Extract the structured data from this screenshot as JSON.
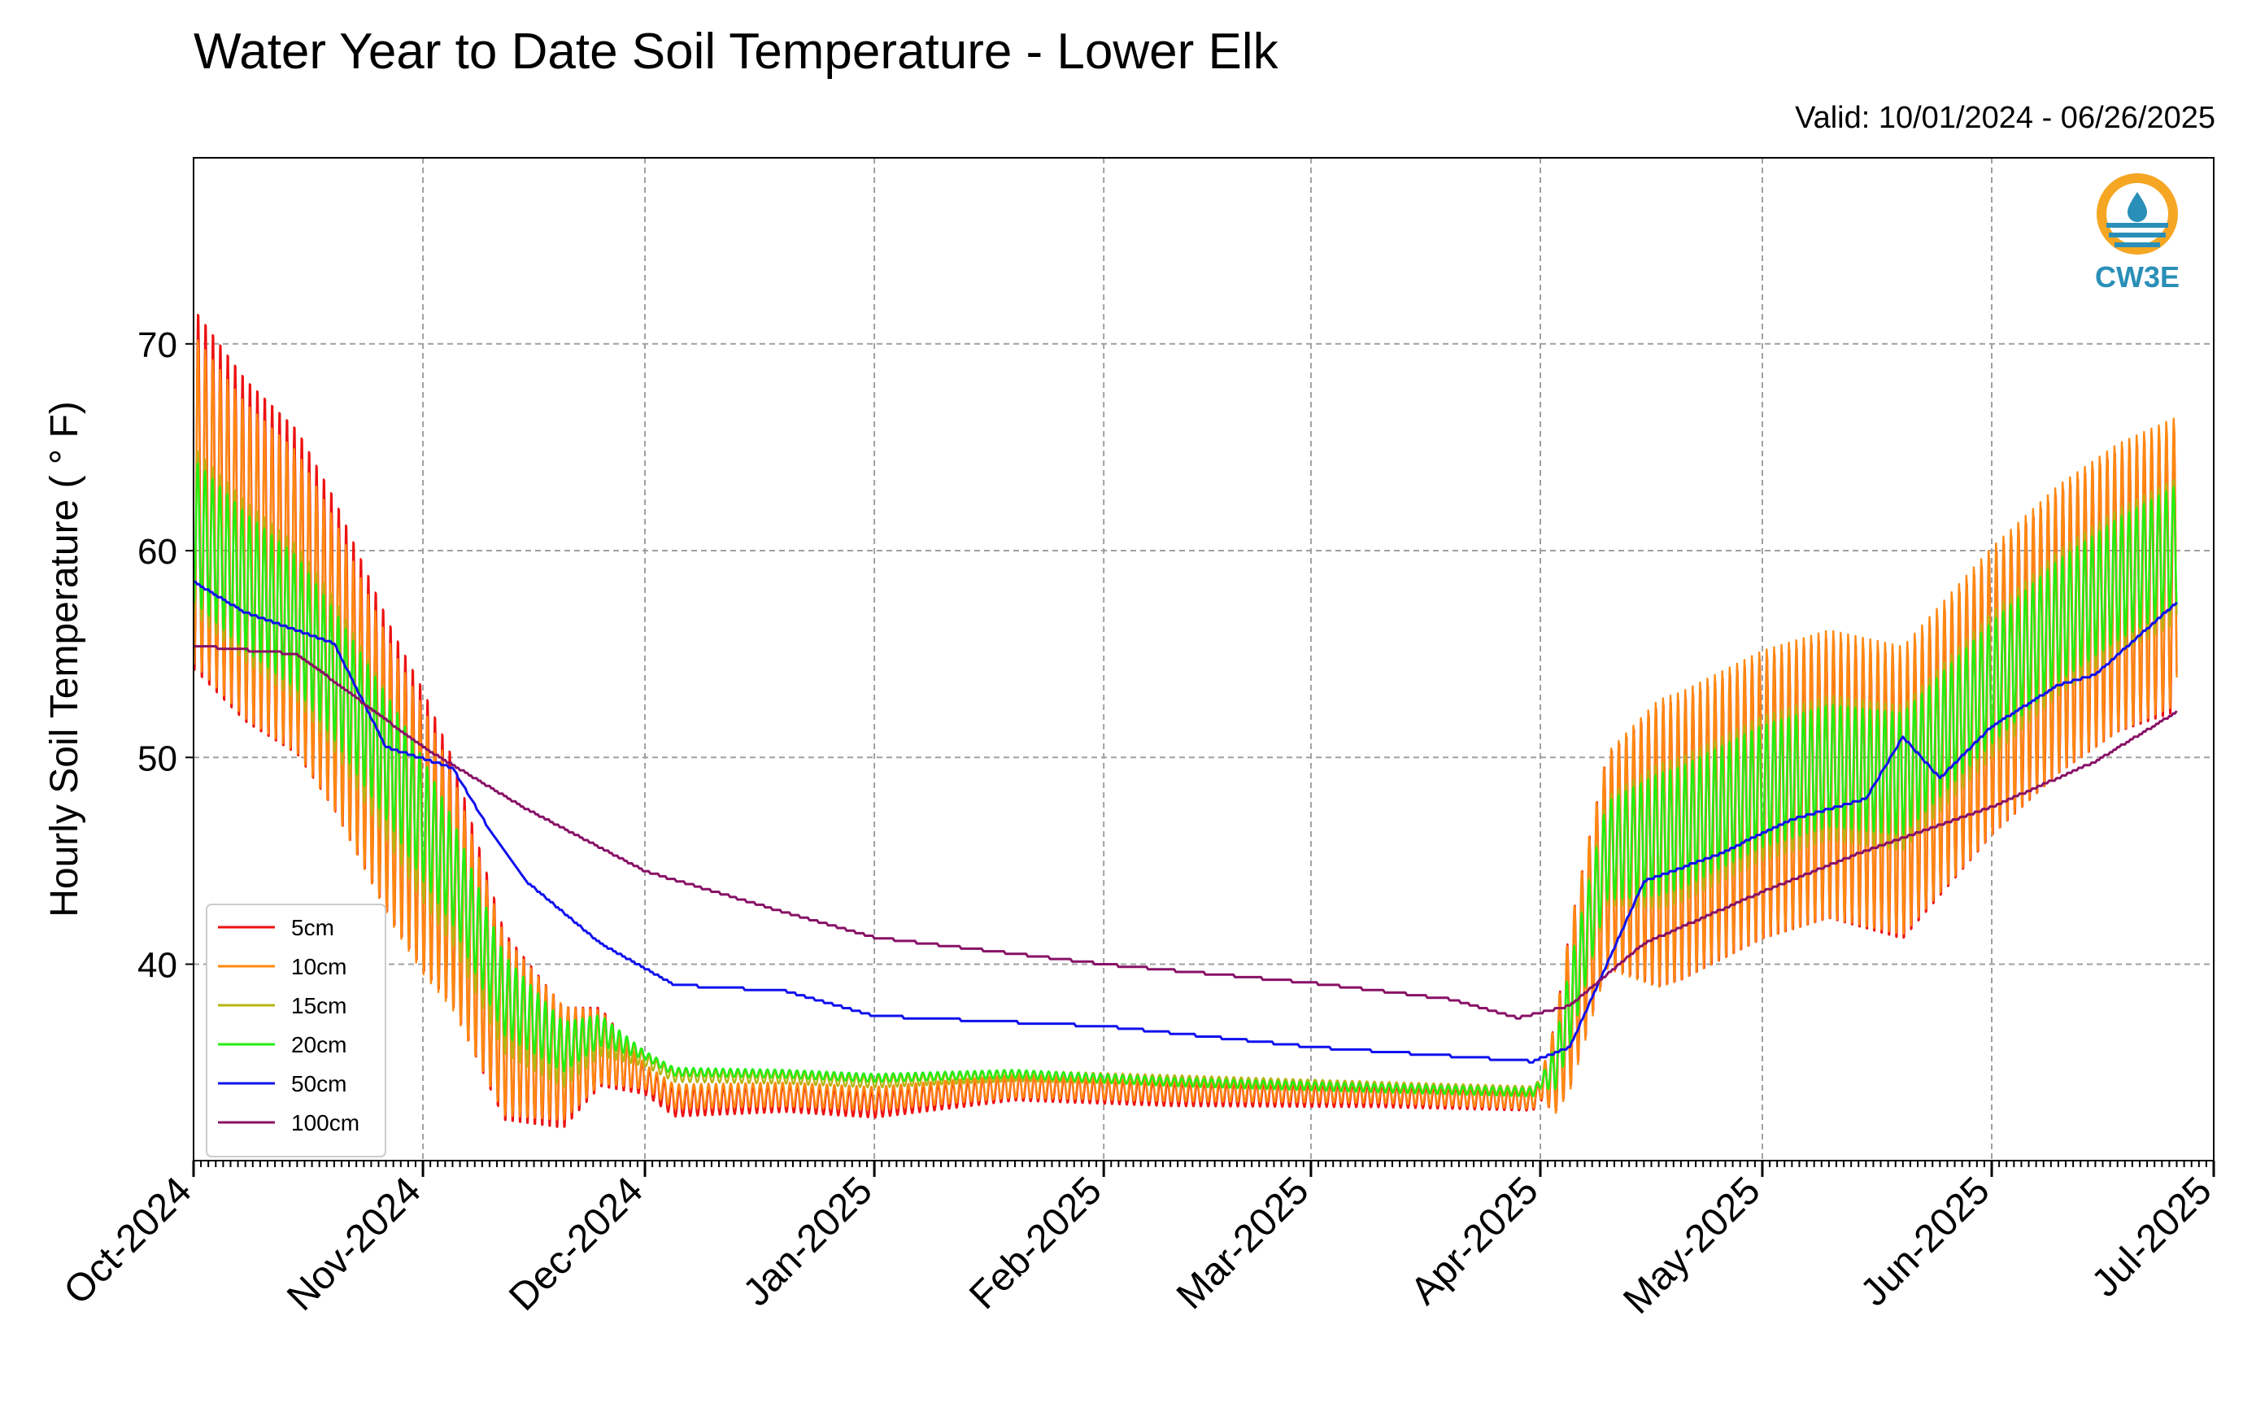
{
  "title": "Water Year to Date Soil Temperature - Lower Elk",
  "valid": "Valid: 10/01/2024 - 06/26/2025",
  "logo_text": "CW3E",
  "colors": {
    "5cm": "#ee1111",
    "10cm": "#ff8811",
    "15cm": "#b5b512",
    "20cm": "#22ee11",
    "50cm": "#1111ee",
    "100cm": "#881166"
  },
  "chart_data": {
    "type": "line",
    "title": "Water Year to Date Soil Temperature - Lower Elk",
    "ylabel": "Hourly Soil Temperature ( ° F)",
    "xlabel": "",
    "xlim": [
      "2024-10-01",
      "2025-07-01"
    ],
    "ylim": [
      30.5,
      79
    ],
    "yticks": [
      40,
      50,
      60,
      70
    ],
    "xtick_labels": [
      "Oct-2024",
      "Nov-2024",
      "Dec-2024",
      "Jan-2025",
      "Feb-2025",
      "Mar-2025",
      "Apr-2025",
      "May-2025",
      "Jun-2025",
      "Jul-2025"
    ],
    "grid": true,
    "legend_position": "lower-left",
    "series": [
      {
        "name": "5cm",
        "color": "#ee1111",
        "daily_amplitude": [
          [
            0,
            9
          ],
          [
            31,
            7
          ],
          [
            61,
            0.7
          ],
          [
            182,
            0.5
          ],
          [
            186,
            4
          ],
          [
            198,
            7
          ],
          [
            270,
            7
          ]
        ],
        "x": [
          "2024-10-01",
          "2024-10-08",
          "2024-10-15",
          "2024-10-20",
          "2024-10-28",
          "2024-11-05",
          "2024-11-12",
          "2024-11-20",
          "2024-11-25",
          "2024-12-05",
          "2024-12-20",
          "2025-01-01",
          "2025-01-20",
          "2025-02-10",
          "2025-03-10",
          "2025-03-31",
          "2025-04-03",
          "2025-04-10",
          "2025-04-20",
          "2025-05-01",
          "2025-05-10",
          "2025-05-20",
          "2025-06-01",
          "2025-06-10",
          "2025-06-18",
          "2025-06-26"
        ],
        "y": [
          63,
          60,
          58,
          55,
          49,
          44,
          37,
          35,
          36,
          33.3,
          33.5,
          33.2,
          34,
          33.7,
          33.6,
          33.4,
          35,
          45,
          46,
          48,
          49,
          48,
          53,
          56,
          58,
          59
        ]
      },
      {
        "name": "10cm",
        "color": "#ff8811",
        "daily_amplitude": [
          [
            0,
            8
          ],
          [
            31,
            6.5
          ],
          [
            61,
            0.6
          ],
          [
            182,
            0.5
          ],
          [
            186,
            4
          ],
          [
            198,
            7
          ],
          [
            270,
            7
          ]
        ],
        "x": [
          "2024-10-01",
          "2024-10-08",
          "2024-10-15",
          "2024-10-20",
          "2024-10-28",
          "2024-11-05",
          "2024-11-12",
          "2024-11-20",
          "2024-11-25",
          "2024-12-05",
          "2024-12-20",
          "2025-01-01",
          "2025-01-20",
          "2025-02-10",
          "2025-03-10",
          "2025-03-31",
          "2025-04-03",
          "2025-04-10",
          "2025-04-20",
          "2025-05-01",
          "2025-05-10",
          "2025-05-20",
          "2025-06-01",
          "2025-06-10",
          "2025-06-18",
          "2025-06-26"
        ],
        "y": [
          62.5,
          59.5,
          57.5,
          54.5,
          48.5,
          43.5,
          37,
          35.2,
          36,
          33.6,
          33.7,
          33.5,
          34.1,
          33.9,
          33.8,
          33.5,
          35,
          45,
          46.2,
          48.2,
          49.2,
          48.4,
          53.2,
          56.2,
          58.2,
          59.5
        ]
      },
      {
        "name": "15cm",
        "color": "#b5b512",
        "daily_amplitude": [
          [
            0,
            4
          ],
          [
            31,
            3.5
          ],
          [
            61,
            0.3
          ],
          [
            182,
            0.2
          ],
          [
            186,
            2
          ],
          [
            198,
            3.5
          ],
          [
            270,
            3.5
          ]
        ],
        "x": [
          "2024-10-01",
          "2024-10-08",
          "2024-10-15",
          "2024-10-20",
          "2024-10-28",
          "2024-11-05",
          "2024-11-12",
          "2024-11-20",
          "2024-11-25",
          "2024-12-05",
          "2024-12-20",
          "2025-01-01",
          "2025-01-20",
          "2025-02-10",
          "2025-03-10",
          "2025-03-31",
          "2025-04-03",
          "2025-04-10",
          "2025-04-20",
          "2025-05-01",
          "2025-05-10",
          "2025-05-20",
          "2025-06-01",
          "2025-06-10",
          "2025-06-18",
          "2025-06-26"
        ],
        "y": [
          61,
          58.5,
          56.5,
          54,
          49,
          44,
          38,
          35.5,
          36.5,
          34.6,
          34.5,
          34.3,
          34.6,
          34.4,
          34.1,
          33.9,
          35,
          45.5,
          46.5,
          48.5,
          49.5,
          49,
          53.5,
          56.5,
          58.5,
          60
        ]
      },
      {
        "name": "20cm",
        "color": "#22ee11",
        "daily_amplitude": [
          [
            0,
            3.5
          ],
          [
            31,
            3
          ],
          [
            61,
            0.2
          ],
          [
            182,
            0.2
          ],
          [
            186,
            2
          ],
          [
            198,
            3
          ],
          [
            270,
            3
          ]
        ],
        "x": [
          "2024-10-01",
          "2024-10-08",
          "2024-10-15",
          "2024-10-20",
          "2024-10-28",
          "2024-11-05",
          "2024-11-12",
          "2024-11-20",
          "2024-11-25",
          "2024-12-05",
          "2024-12-20",
          "2025-01-01",
          "2025-01-20",
          "2025-02-10",
          "2025-03-10",
          "2025-03-31",
          "2025-04-03",
          "2025-04-10",
          "2025-04-20",
          "2025-05-01",
          "2025-05-10",
          "2025-05-20",
          "2025-06-01",
          "2025-06-10",
          "2025-06-18",
          "2025-06-26"
        ],
        "y": [
          61,
          58.5,
          56.5,
          54,
          49.5,
          44.5,
          38.5,
          36,
          36.8,
          34.8,
          34.7,
          34.5,
          34.7,
          34.3,
          34,
          33.8,
          35,
          45.5,
          46.6,
          48.6,
          49.6,
          49.2,
          53.6,
          56.6,
          58.6,
          60.2
        ]
      },
      {
        "name": "50cm",
        "color": "#1111ee",
        "daily_amplitude": [],
        "x": [
          "2024-10-01",
          "2024-10-08",
          "2024-10-20",
          "2024-10-27",
          "2024-11-05",
          "2024-11-10",
          "2024-11-15",
          "2024-11-25",
          "2024-12-05",
          "2024-12-20",
          "2025-01-01",
          "2025-02-01",
          "2025-03-01",
          "2025-03-31",
          "2025-04-05",
          "2025-04-15",
          "2025-04-25",
          "2025-05-05",
          "2025-05-15",
          "2025-05-20",
          "2025-05-25",
          "2025-06-01",
          "2025-06-10",
          "2025-06-15",
          "2025-06-26"
        ],
        "y": [
          58.5,
          57,
          55.5,
          50.5,
          49.5,
          46.5,
          44,
          41,
          39,
          38.7,
          37.5,
          37,
          36,
          35.3,
          36,
          44,
          45.3,
          47,
          48,
          51,
          49,
          51.5,
          53.5,
          54,
          57.5
        ]
      },
      {
        "name": "100cm",
        "color": "#881166",
        "daily_amplitude": [],
        "x": [
          "2024-10-01",
          "2024-10-15",
          "2024-11-01",
          "2024-11-15",
          "2024-12-01",
          "2024-12-20",
          "2025-01-01",
          "2025-02-01",
          "2025-03-01",
          "2025-03-20",
          "2025-03-29",
          "2025-04-05",
          "2025-04-15",
          "2025-05-01",
          "2025-05-15",
          "2025-06-01",
          "2025-06-15",
          "2025-06-26"
        ],
        "y": [
          55.4,
          55,
          50.5,
          47.5,
          44.5,
          42.5,
          41.3,
          40,
          39.1,
          38.3,
          37.4,
          38,
          41,
          43.5,
          45.5,
          47.6,
          49.8,
          52.2
        ]
      }
    ]
  }
}
